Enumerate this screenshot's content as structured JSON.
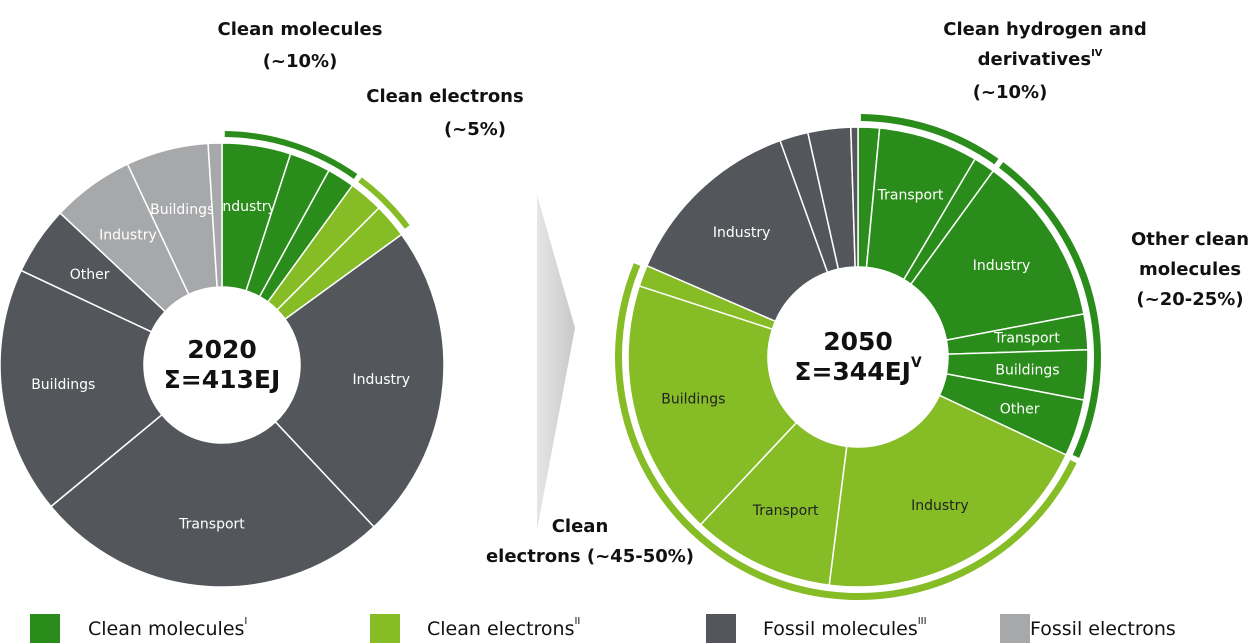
{
  "chart_data": [
    {
      "type": "donut",
      "center": [
        "2020",
        "Σ=413EJ"
      ],
      "groups": [
        {
          "color": "#2a8c1a",
          "label": [
            "Clean molecules",
            "(~10%)"
          ],
          "segments": [
            {
              "label": "Industry",
              "value": 5
            },
            {
              "label": null,
              "value": 3
            },
            {
              "label": null,
              "value": 2
            }
          ]
        },
        {
          "color": "#86bc25",
          "label": [
            "Clean electrons",
            "(~5%)"
          ],
          "segments": [
            {
              "label": null,
              "value": 2.5
            },
            {
              "label": null,
              "value": 2.5
            }
          ]
        },
        {
          "color": "#53565a",
          "label": null,
          "segments": [
            {
              "label": "Industry",
              "value": 23
            },
            {
              "label": "Transport",
              "value": 26
            },
            {
              "label": "Buildings",
              "value": 18
            },
            {
              "label": "Other",
              "value": 5
            }
          ]
        },
        {
          "color": "#a7a8aa",
          "label": null,
          "segments": [
            {
              "label": "Industry",
              "value": 6
            },
            {
              "label": "Buildings",
              "value": 6
            },
            {
              "label": null,
              "value": 1
            }
          ]
        }
      ]
    },
    {
      "type": "donut",
      "center": [
        "2050",
        {
          "text": "Σ=344EJ",
          "sup": "V"
        }
      ],
      "groups": [
        {
          "color": "#2a8c1a",
          "label": [
            "Clean hydrogen and",
            {
              "text": "derivatives",
              "sup": "IV"
            },
            "(~10%)"
          ],
          "segments": [
            {
              "label": null,
              "value": 1.5
            },
            {
              "label": "Transport",
              "value": 7
            },
            {
              "label": null,
              "value": 1.5
            }
          ]
        },
        {
          "color": "#2a8c1a",
          "label": [
            "Other clean",
            "molecules",
            "(~20-25%)"
          ],
          "segments": [
            {
              "label": "Industry",
              "value": 12
            },
            {
              "label": "Transport",
              "value": 2.5
            },
            {
              "label": "Buildings",
              "value": 3.5
            },
            {
              "label": "Other",
              "value": 4
            }
          ]
        },
        {
          "color": "#86bc25",
          "label": [
            "Clean",
            "electrons (~45-50%)"
          ],
          "segments": [
            {
              "label": "Industry",
              "value": 20
            },
            {
              "label": "Transport",
              "value": 10
            },
            {
              "label": "Buildings",
              "value": 18
            },
            {
              "label": null,
              "value": 1.5
            }
          ]
        },
        {
          "color": "#53565a",
          "label": null,
          "segments": [
            {
              "label": "Industry",
              "value": 13
            },
            {
              "label": null,
              "value": 2
            },
            {
              "label": null,
              "value": 3
            },
            {
              "label": null,
              "value": 0.5
            }
          ]
        }
      ]
    }
  ],
  "legend": [
    {
      "name": "Clean molecules",
      "sup": "I",
      "color": "#2a8c1a"
    },
    {
      "name": "Clean electrons",
      "sup": "II",
      "color": "#86bc25"
    },
    {
      "name": "Fossil molecules",
      "sup": "III",
      "color": "#53565a"
    },
    {
      "name": "Fossil electrons",
      "sup": null,
      "color": "#a7a8aa"
    }
  ]
}
